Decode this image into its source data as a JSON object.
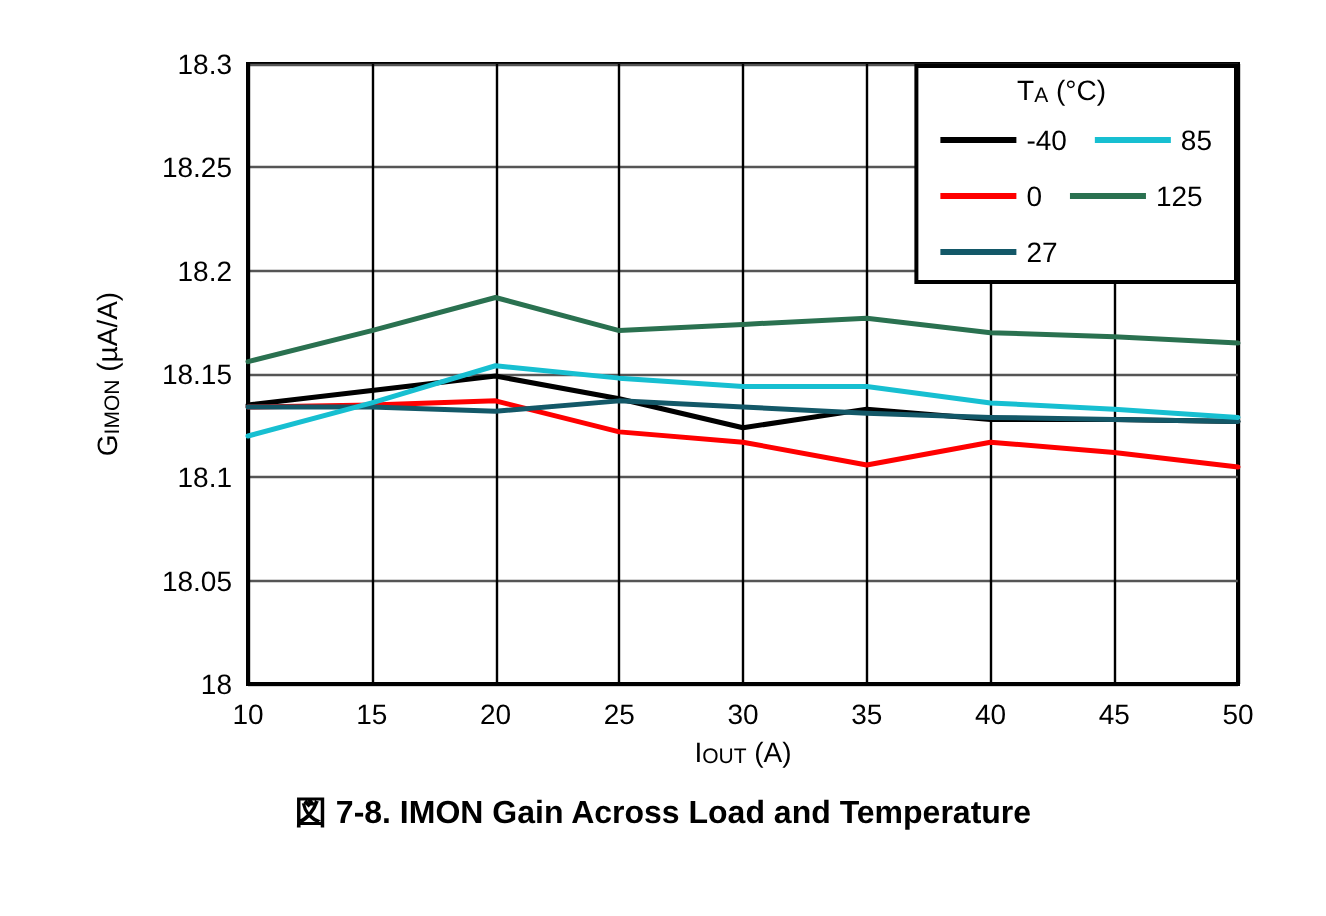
{
  "chart_data": {
    "type": "line",
    "title": "図 7-8. IMON Gain Across Load and Temperature",
    "xlabel": "I$_{OUT}$ (A)",
    "ylabel": "G$_{IMON}$ (µA/A)",
    "legend_title": "T$_{A}$ (°C)",
    "x": [
      10,
      15,
      20,
      25,
      30,
      35,
      40,
      45,
      50
    ],
    "series": [
      {
        "name": "-40",
        "color": "#000000",
        "values": [
          18.135,
          18.142,
          18.149,
          18.138,
          18.124,
          18.133,
          18.128,
          18.128,
          18.127
        ]
      },
      {
        "name": "0",
        "color": "#ff0000",
        "values": [
          18.134,
          18.135,
          18.137,
          18.122,
          18.117,
          18.106,
          18.117,
          18.112,
          18.105
        ]
      },
      {
        "name": "27",
        "color": "#135868",
        "values": [
          18.134,
          18.134,
          18.132,
          18.137,
          18.134,
          18.131,
          18.129,
          18.128,
          18.127
        ]
      },
      {
        "name": "85",
        "color": "#17bfd1",
        "values": [
          18.12,
          18.136,
          18.154,
          18.148,
          18.144,
          18.144,
          18.136,
          18.133,
          18.129
        ]
      },
      {
        "name": "125",
        "color": "#2a7150",
        "values": [
          18.156,
          18.171,
          18.187,
          18.171,
          18.174,
          18.177,
          18.17,
          18.168,
          18.165
        ]
      }
    ],
    "xlim": [
      10,
      50
    ],
    "xticks": [
      10,
      15,
      20,
      25,
      30,
      35,
      40,
      45,
      50
    ],
    "ylim": [
      18,
      18.3
    ],
    "yticks": [
      18,
      18.05,
      18.1,
      18.15,
      18.2,
      18.25,
      18.3
    ],
    "grid": true,
    "legend": "top right",
    "marker": "none",
    "line_style": "solid"
  }
}
